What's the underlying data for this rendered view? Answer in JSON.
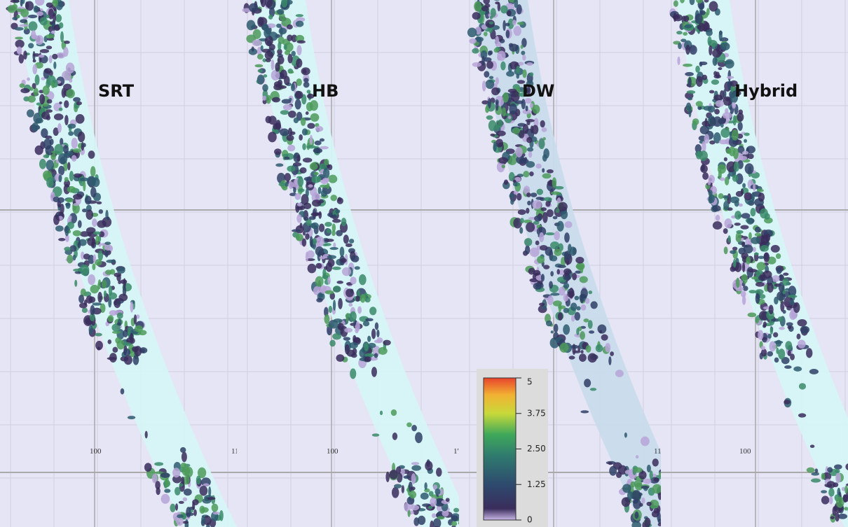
{
  "panels": [
    {
      "label": "SRT",
      "grid_labels": [
        "100",
        "11"
      ]
    },
    {
      "label": "HB",
      "grid_labels": [
        "100",
        "1'"
      ]
    },
    {
      "label": "DW",
      "grid_labels": [
        "11"
      ]
    },
    {
      "label": "Hybrid",
      "grid_labels": [
        "100"
      ]
    }
  ],
  "colorbar": {
    "range": [
      0,
      5
    ],
    "ticks": [
      5,
      3.75,
      {
        "value": 2.5,
        "label": "2.50"
      },
      1.25,
      0
    ]
  }
}
